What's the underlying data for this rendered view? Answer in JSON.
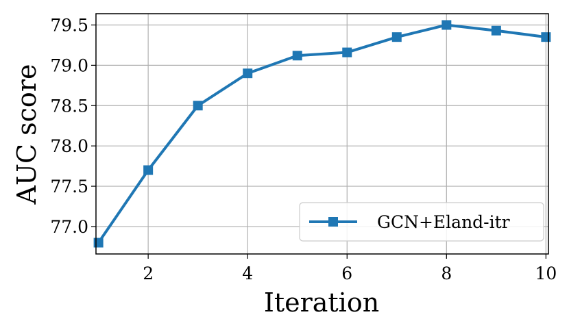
{
  "chart_data": {
    "type": "line",
    "title": "",
    "xlabel": "Iteration",
    "ylabel": "AUC score",
    "xlim": [
      0.95,
      10.05
    ],
    "ylim": [
      76.66,
      79.64
    ],
    "xticks": [
      2,
      4,
      6,
      8,
      10
    ],
    "yticks": [
      77.0,
      77.5,
      78.0,
      78.5,
      79.0,
      79.5
    ],
    "xtick_labels": [
      "2",
      "4",
      "6",
      "8",
      "10"
    ],
    "ytick_labels": [
      "77.0",
      "77.5",
      "78.0",
      "78.5",
      "79.0",
      "79.5"
    ],
    "grid": true,
    "legend_position": "lower-right",
    "series": [
      {
        "name": "GCN+Eland-itr",
        "color": "#1f77b4",
        "marker": "square",
        "x": [
          1,
          2,
          3,
          4,
          5,
          6,
          7,
          8,
          9,
          10
        ],
        "y": [
          76.8,
          77.7,
          78.5,
          78.9,
          79.12,
          79.16,
          79.35,
          79.5,
          79.43,
          79.35
        ]
      }
    ]
  }
}
